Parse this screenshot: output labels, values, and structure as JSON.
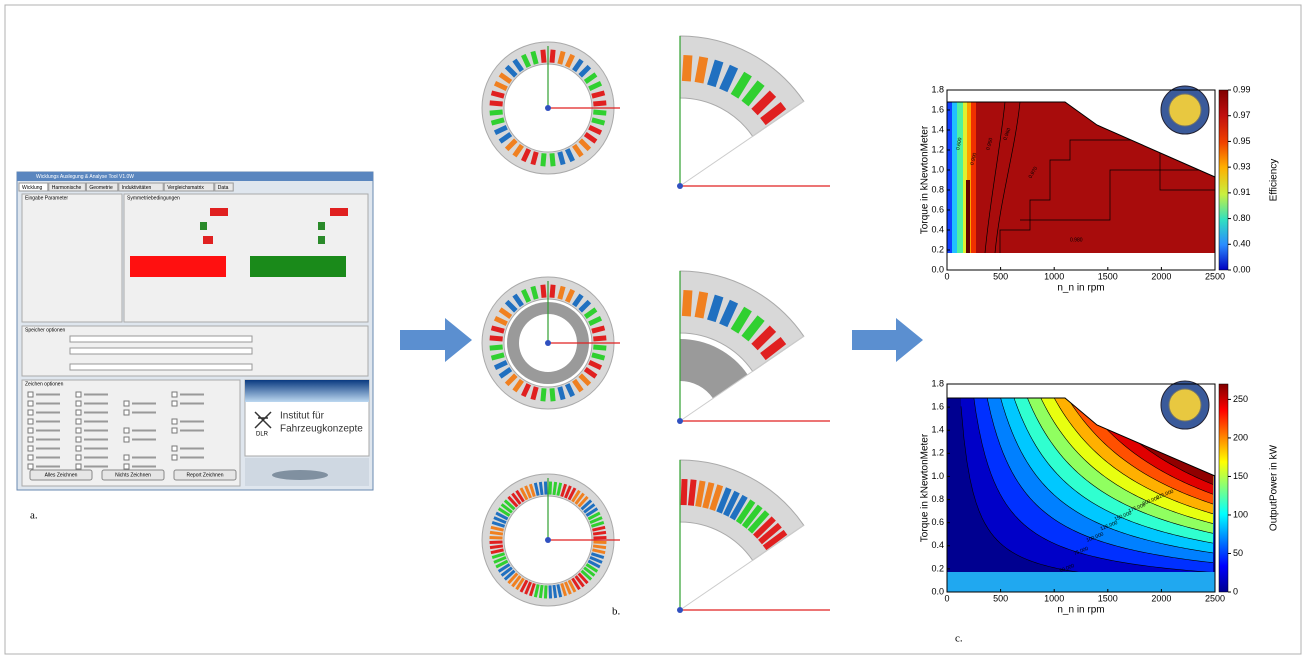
{
  "panel_a": {
    "label": "a.",
    "window_title": "Wicklungs Auslegung & Analyse Tool V1.0W",
    "tabs": [
      "Wicklung",
      "Harmonische",
      "Geometrie",
      "Induktivitäten",
      "Vergleichsmatrix",
      "Data"
    ],
    "groups": [
      "Eingabe Parameter",
      "Symmetriebedingungen",
      "Speicher optionen",
      "Zeichen optionen"
    ],
    "logo_abbr": "DLR",
    "logo_lines": [
      "Institut für",
      "Fahrzeugkonzepte"
    ],
    "buttons": [
      "Alles Zeichnen",
      "Nichts Zeichnen",
      "Report Zeichnen"
    ]
  },
  "panel_b": {
    "label": "b."
  },
  "panel_c": {
    "label": "c.",
    "plots": [
      {
        "type": "contour",
        "xlabel": "n_n in rpm",
        "ylabel": "Torque in kNewtonMeter",
        "colorbar_label": "Efficiency",
        "xlim": [
          0,
          2500
        ],
        "xticks": [
          0,
          500,
          1000,
          1500,
          2000,
          2500
        ],
        "ylim": [
          0,
          1.8
        ],
        "yticks": [
          {
            "value": 0,
            "label": "0.0"
          },
          0.2,
          0.4,
          0.6,
          0.8,
          {
            "value": 1,
            "label": "1.0"
          },
          1.2,
          1.4,
          1.6,
          1.8
        ],
        "colorbar_ticks": [
          {
            "value": 0.99,
            "label": "0.99"
          },
          {
            "value": 0.97,
            "label": "0.97"
          },
          {
            "value": 0.95,
            "label": "0.95"
          },
          {
            "value": 0.93,
            "label": "0.93"
          },
          {
            "value": 0.91,
            "label": "0.91"
          },
          {
            "value": 0.8,
            "label": "0.80"
          },
          {
            "value": 0.4,
            "label": "0.40"
          },
          {
            "value": 0,
            "label": "0.00"
          }
        ],
        "contour_labels": [
          "0.600",
          "0.900",
          "0.950",
          "0.960",
          "0.970",
          "0.980"
        ]
      },
      {
        "type": "contour",
        "xlabel": "n_n in rpm",
        "ylabel": "Torque in kNewtonMeter",
        "colorbar_label": "OutputPower in kW",
        "xlim": [
          0,
          2500
        ],
        "xticks": [
          0,
          500,
          1000,
          1500,
          2000,
          2500
        ],
        "ylim": [
          0,
          1.8
        ],
        "yticks": [
          {
            "value": 0,
            "label": "0.0"
          },
          0.2,
          0.4,
          0.6,
          0.8,
          {
            "value": 1,
            "label": "1.0"
          },
          1.2,
          1.4,
          1.6,
          1.8
        ],
        "clim": [
          0,
          270
        ],
        "colorbar_ticks": [
          0,
          50,
          100,
          150,
          200,
          250
        ],
        "contour_labels": [
          "225.000",
          "200.000",
          "175.000",
          "150.000",
          "125.000",
          "100.000",
          "75.000",
          "50.000"
        ]
      }
    ]
  }
}
